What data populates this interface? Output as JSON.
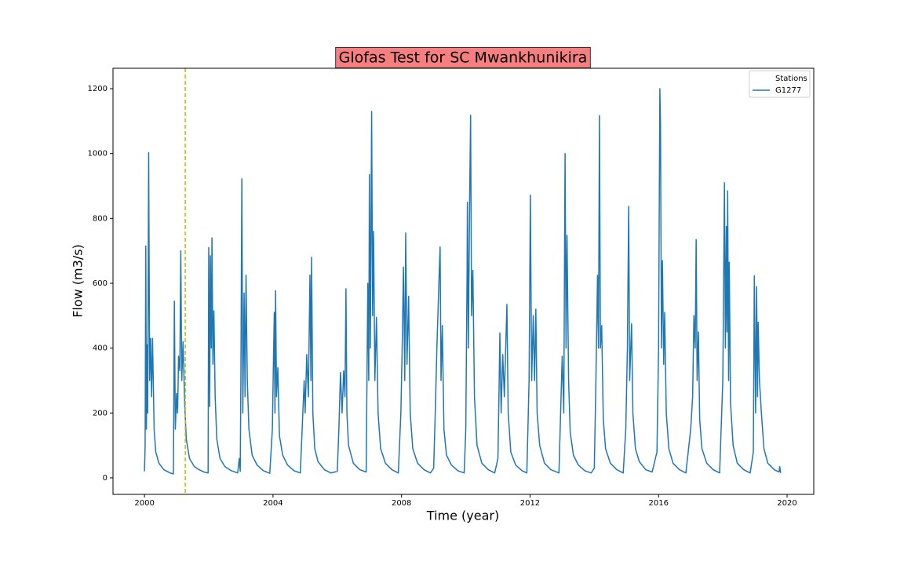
{
  "chart_data": {
    "type": "line",
    "title": "Glofas Test for SC Mwankhunikira",
    "title_background": "#f77f7f",
    "xlabel": "Time (year)",
    "ylabel": "Flow (m3/s)",
    "legend_title": "Stations",
    "legend_position": "upper right",
    "vline": 2001.27,
    "vline_color": "#bfbf00",
    "xlim": [
      1999.02,
      2020.83
    ],
    "ylim": [
      -51,
      1263
    ],
    "xticks": [
      2000,
      2004,
      2008,
      2012,
      2016,
      2020
    ],
    "yticks": [
      0,
      200,
      400,
      600,
      800,
      1000,
      1200
    ],
    "x": [
      2000.0,
      2000.02,
      2000.04,
      2000.06,
      2000.08,
      2000.1,
      2000.13,
      2000.16,
      2000.19,
      2000.22,
      2000.25,
      2000.3,
      2000.35,
      2000.45,
      2000.6,
      2000.8,
      2000.9,
      2000.93,
      2000.96,
      2001.0,
      2001.03,
      2001.06,
      2001.1,
      2001.13,
      2001.16,
      2001.2,
      2001.25,
      2001.3,
      2001.4,
      2001.55,
      2001.7,
      2001.85,
      2001.98,
      2002.0,
      2002.03,
      2002.05,
      2002.08,
      2002.1,
      2002.13,
      2002.16,
      2002.2,
      2002.25,
      2002.35,
      2002.5,
      2002.7,
      2002.9,
      2002.95,
      2002.98,
      2003.0,
      2003.03,
      2003.06,
      2003.1,
      2003.13,
      2003.16,
      2003.2,
      2003.25,
      2003.35,
      2003.5,
      2003.7,
      2003.9,
      2003.98,
      2004.02,
      2004.04,
      2004.06,
      2004.08,
      2004.11,
      2004.15,
      2004.2,
      2004.3,
      2004.45,
      2004.65,
      2004.85,
      2004.97,
      2005.0,
      2005.05,
      2005.1,
      2005.15,
      2005.18,
      2005.2,
      2005.24,
      2005.3,
      2005.4,
      2005.6,
      2005.8,
      2006.0,
      2006.05,
      2006.1,
      2006.15,
      2006.2,
      2006.24,
      2006.27,
      2006.3,
      2006.35,
      2006.5,
      2006.7,
      2006.9,
      2006.95,
      2006.98,
      2007.0,
      2007.03,
      2007.07,
      2007.1,
      2007.13,
      2007.17,
      2007.22,
      2007.27,
      2007.35,
      2007.5,
      2007.7,
      2007.9,
      2007.98,
      2008.02,
      2008.06,
      2008.1,
      2008.13,
      2008.17,
      2008.22,
      2008.27,
      2008.35,
      2008.5,
      2008.7,
      2008.9,
      2009.0,
      2009.05,
      2009.1,
      2009.15,
      2009.2,
      2009.23,
      2009.27,
      2009.32,
      2009.4,
      2009.55,
      2009.75,
      2009.95,
      2010.0,
      2010.04,
      2010.05,
      2010.08,
      2010.12,
      2010.15,
      2010.18,
      2010.22,
      2010.27,
      2010.35,
      2010.5,
      2010.7,
      2010.9,
      2011.0,
      2011.04,
      2011.06,
      2011.1,
      2011.15,
      2011.2,
      2011.28,
      2011.32,
      2011.4,
      2011.55,
      2011.75,
      2011.9,
      2011.97,
      2012.01,
      2012.05,
      2012.1,
      2012.14,
      2012.18,
      2012.22,
      2012.3,
      2012.45,
      2012.65,
      2012.9,
      2013.0,
      2013.05,
      2013.09,
      2013.12,
      2013.15,
      2013.2,
      2013.25,
      2013.35,
      2013.5,
      2013.7,
      2013.9,
      2014.0,
      2014.05,
      2014.1,
      2014.13,
      2014.16,
      2014.19,
      2014.23,
      2014.28,
      2014.35,
      2014.5,
      2014.7,
      2014.9,
      2014.98,
      2015.03,
      2015.07,
      2015.1,
      2015.16,
      2015.2,
      2015.28,
      2015.4,
      2015.6,
      2015.8,
      2015.95,
      2016.0,
      2016.04,
      2016.06,
      2016.09,
      2016.12,
      2016.16,
      2016.19,
      2016.24,
      2016.32,
      2016.45,
      2016.65,
      2016.85,
      2017.0,
      2017.06,
      2017.1,
      2017.14,
      2017.17,
      2017.2,
      2017.24,
      2017.28,
      2017.35,
      2017.5,
      2017.7,
      2017.9,
      2018.0,
      2018.05,
      2018.08,
      2018.11,
      2018.13,
      2018.15,
      2018.18,
      2018.2,
      2018.24,
      2018.32,
      2018.45,
      2018.65,
      2018.85,
      2018.95,
      2018.98,
      2019.02,
      2019.05,
      2019.08,
      2019.1,
      2019.14,
      2019.2,
      2019.28,
      2019.4,
      2019.6,
      2019.75,
      2019.77,
      2019.8
    ],
    "series": [
      {
        "name": "G1277",
        "color": "#1f77b4",
        "values": [
          20,
          100,
          715,
          150,
          410,
          200,
          1003,
          300,
          430,
          250,
          430,
          150,
          80,
          45,
          25,
          15,
          12,
          545,
          150,
          260,
          200,
          375,
          330,
          700,
          300,
          420,
          230,
          120,
          60,
          35,
          25,
          18,
          15,
          710,
          220,
          685,
          400,
          740,
          350,
          515,
          250,
          120,
          60,
          35,
          22,
          15,
          60,
          20,
          300,
          922,
          200,
          570,
          250,
          625,
          300,
          150,
          70,
          40,
          22,
          14,
          150,
          400,
          510,
          200,
          577,
          250,
          340,
          130,
          70,
          40,
          22,
          15,
          300,
          200,
          380,
          250,
          625,
          300,
          680,
          200,
          90,
          50,
          25,
          15,
          20,
          150,
          325,
          200,
          330,
          250,
          583,
          200,
          100,
          45,
          25,
          18,
          600,
          300,
          935,
          400,
          1130,
          500,
          760,
          300,
          495,
          200,
          90,
          45,
          25,
          15,
          200,
          400,
          650,
          300,
          755,
          350,
          560,
          200,
          90,
          45,
          25,
          15,
          30,
          200,
          400,
          560,
          712,
          300,
          470,
          150,
          70,
          40,
          22,
          15,
          150,
          630,
          850,
          400,
          860,
          1118,
          500,
          640,
          250,
          100,
          45,
          25,
          15,
          60,
          300,
          447,
          200,
          380,
          250,
          535,
          200,
          80,
          40,
          22,
          15,
          300,
          872,
          300,
          500,
          300,
          520,
          200,
          100,
          45,
          25,
          15,
          375,
          200,
          1000,
          400,
          748,
          300,
          140,
          70,
          40,
          22,
          15,
          30,
          300,
          625,
          400,
          1117,
          400,
          470,
          180,
          90,
          45,
          25,
          15,
          150,
          400,
          837,
          300,
          475,
          200,
          90,
          50,
          25,
          18,
          80,
          400,
          1200,
          1095,
          400,
          670,
          350,
          510,
          200,
          90,
          45,
          25,
          15,
          150,
          250,
          500,
          400,
          735,
          300,
          450,
          180,
          90,
          45,
          25,
          15,
          300,
          910,
          400,
          775,
          450,
          885,
          300,
          665,
          230,
          100,
          45,
          25,
          15,
          80,
          623,
          200,
          590,
          250,
          480,
          300,
          200,
          90,
          45,
          25,
          18,
          35,
          15
        ]
      }
    ]
  }
}
